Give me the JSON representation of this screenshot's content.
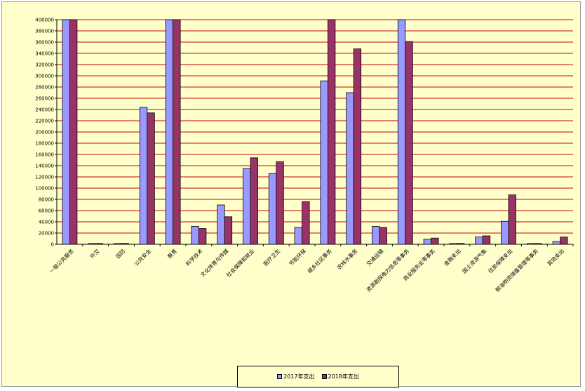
{
  "chart_data": {
    "type": "bar",
    "title": "",
    "xlabel": "",
    "ylabel": "",
    "ylim": [
      0,
      400000
    ],
    "y_ticks": [
      "0",
      "20000",
      "40000",
      "60000",
      "80000",
      "100000",
      "120000",
      "140000",
      "160000",
      "180000",
      "200000",
      "220000",
      "240000",
      "260000",
      "280000",
      "300000",
      "320000",
      "340000",
      "360000",
      "380000",
      "400000"
    ],
    "grid": true,
    "legend_position": "bottom",
    "categories": [
      "一般公共服务",
      "外交",
      "国防",
      "公共安全",
      "教育",
      "科学技术",
      "文化体育与传媒",
      "社会保障和就业",
      "医疗卫生",
      "节能环保",
      "城乡社区事务",
      "农林水事务",
      "交通运输",
      "资源勘探电力信息等事务",
      "商业服务业等事务",
      "金融支出",
      "国土资源气象",
      "住房保障支出",
      "粮油物资储备管理等事务",
      "其他支出"
    ],
    "series": [
      {
        "name": "2017年支出",
        "color": "#9999ff",
        "values": [
          400000,
          1000,
          1000,
          244000,
          400000,
          32000,
          70000,
          135000,
          126000,
          30000,
          291000,
          270000,
          32000,
          400000,
          9000,
          500,
          13000,
          41000,
          1000,
          5000
        ]
      },
      {
        "name": "2018年支出",
        "color": "#993366",
        "values": [
          400000,
          1000,
          1000,
          234000,
          400000,
          28000,
          49000,
          154000,
          147000,
          76000,
          400000,
          348000,
          30000,
          361000,
          11000,
          500,
          15000,
          88000,
          1000,
          13000
        ]
      }
    ],
    "grid_color": "#cc0000"
  }
}
